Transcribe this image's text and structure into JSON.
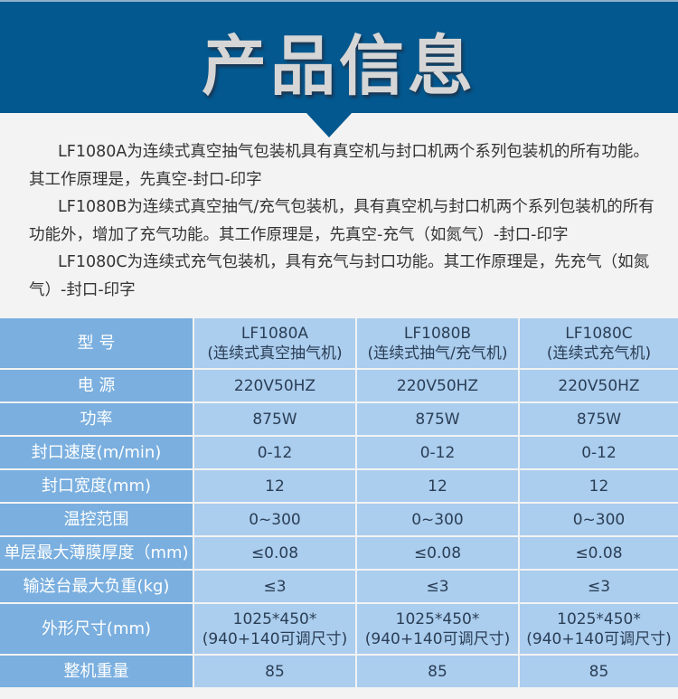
{
  "header": {
    "title": "产品信息"
  },
  "intro": [
    "LF1080A为连续式真空抽气包装机具有真空机与封口机两个系列包装机的所有功能。其工作原理是，先真空-封口-印字",
    "LF1080B为连续式真空抽气/充气包装机，具有真空机与封口机两个系列包装机的所有功能外，增加了充气功能。其工作原理是，先真空-充气（如氮气）-封口-印字",
    "LF1080C为连续式充气包装机，具有充气与封口功能。其工作原理是，先充气（如氮气）-封口-印字"
  ],
  "table": {
    "rows": [
      {
        "label": "型 号",
        "values": [
          "LF1080A\n(连续式真空抽气机)",
          "LF1080B\n(连续式抽气/充气机)",
          "LF1080C\n(连续式充气机)"
        ]
      },
      {
        "label": "电 源",
        "values": [
          "220V50HZ",
          "220V50HZ",
          "220V50HZ"
        ]
      },
      {
        "label": "功率",
        "values": [
          "875W",
          "875W",
          "875W"
        ]
      },
      {
        "label": "封口速度(m/min)",
        "values": [
          "0-12",
          "0-12",
          "0-12"
        ]
      },
      {
        "label": "封口宽度(mm)",
        "values": [
          "12",
          "12",
          "12"
        ]
      },
      {
        "label": "温控范围",
        "values": [
          "0~300",
          "0~300",
          "0~300"
        ]
      },
      {
        "label": "单层最大薄膜厚度（mm)",
        "values": [
          "≤0.08",
          "≤0.08",
          "≤0.08"
        ]
      },
      {
        "label": "输送台最大负重(kg)",
        "values": [
          "≤3",
          "≤3",
          "≤3"
        ]
      },
      {
        "label": "外形尺寸(mm)",
        "values": [
          "1025*450*\n(940+140可调尺寸)",
          "1025*450*\n(940+140可调尺寸)",
          "1025*450*\n(940+140可调尺寸)"
        ]
      },
      {
        "label": "整机重量",
        "values": [
          "85",
          "85",
          "85"
        ]
      }
    ]
  },
  "colors": {
    "header": "#03588f",
    "label_cell": "#7aafdf",
    "value_cell": "#abcdee",
    "background": "#f3f3f3"
  }
}
